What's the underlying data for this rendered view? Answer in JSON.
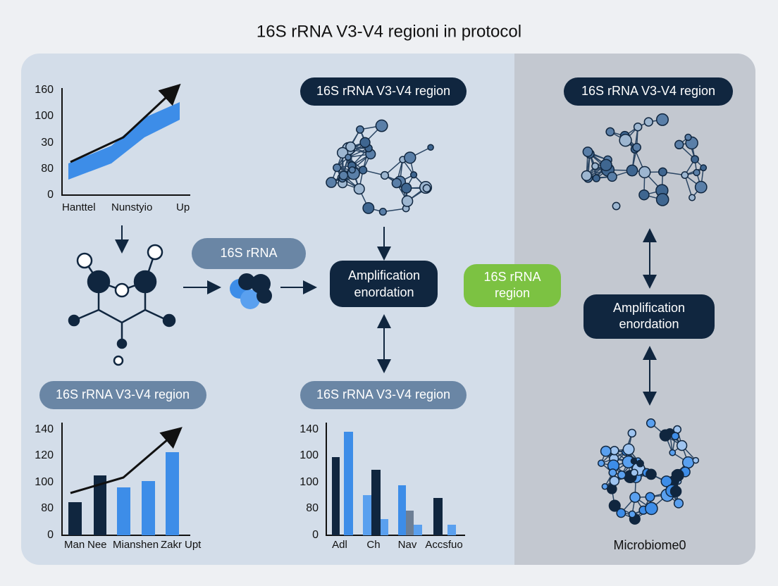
{
  "title": "16S rRNA V3-V4 regioni in protocol",
  "top_left_chart": {
    "y_labels": [
      160,
      100,
      30,
      80,
      0
    ],
    "x_labels": [
      "Hanttel",
      "Nunstyio",
      "Up"
    ]
  },
  "pill_rrna": "16S rRNA",
  "pill_top_middle": "16S rRNA V3-V4 region",
  "amplification_middle": [
    "Amplification",
    "enordation"
  ],
  "pill_green": [
    "16S rRNA",
    "region"
  ],
  "pill_top_right": "16S rRNA V3-V4 region",
  "amplification_right": [
    "Amplification",
    "enordation"
  ],
  "pill_bottom_left": "16S rRNA V3-V4 region",
  "pill_bottom_middle": "16S rRNA V3-V4 region",
  "bottom_left_chart": {
    "y_labels": [
      140,
      120,
      100,
      80,
      0
    ],
    "x_labels": [
      "Man",
      "Nee",
      "Mianshen",
      "Zakr",
      "Upt"
    ]
  },
  "bottom_middle_chart": {
    "y_labels": [
      140,
      100,
      100,
      80,
      0
    ],
    "x_labels": [
      "Adl",
      "Ch",
      "Nav",
      "Accsfuo"
    ]
  },
  "microbiome_label": "Microbiome0"
}
